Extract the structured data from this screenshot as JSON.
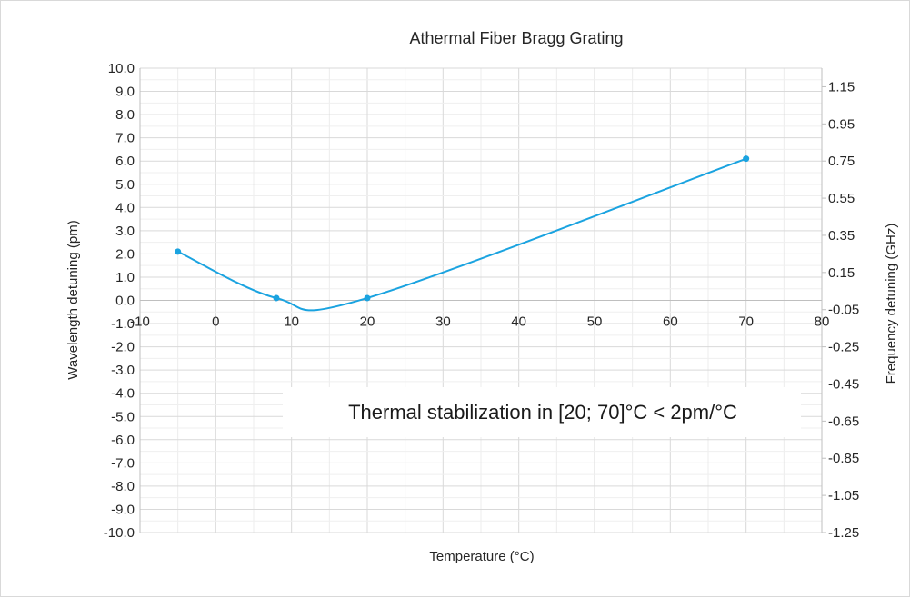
{
  "chart_data": {
    "type": "line",
    "title": "Athermal Fiber Bragg Grating",
    "xlabel": "Temperature (°C)",
    "ylabel": "Wavelength detuning (pm)",
    "y2label": "Frequency detuning (GHz)",
    "xlim": [
      -10,
      80
    ],
    "ylim": [
      -10,
      10
    ],
    "y2lim": [
      -1.25,
      1.25
    ],
    "x_ticks": [
      "-10",
      "0",
      "10",
      "20",
      "30",
      "40",
      "50",
      "60",
      "70",
      "80"
    ],
    "y_ticks": [
      "-10.0",
      "-9.0",
      "-8.0",
      "-7.0",
      "-6.0",
      "-5.0",
      "-4.0",
      "-3.0",
      "-2.0",
      "-1.0",
      "0.0",
      "1.0",
      "2.0",
      "3.0",
      "4.0",
      "5.0",
      "6.0",
      "7.0",
      "8.0",
      "9.0",
      "10.0"
    ],
    "y2_ticks": [
      "-1.25",
      "-1.05",
      "-0.85",
      "-0.65",
      "-0.45",
      "-0.25",
      "-0.05",
      "0.15",
      "0.35",
      "0.55",
      "0.75",
      "0.95",
      "1.15"
    ],
    "grid": true,
    "smooth": true,
    "series": [
      {
        "x": [
          -5,
          8,
          20,
          70
        ],
        "y": [
          2.1,
          0.1,
          0.1,
          6.1
        ],
        "color": "#1aa3e0"
      }
    ],
    "annotation": "Thermal stabilization in [20; 70]°C < 2pm/°C"
  }
}
